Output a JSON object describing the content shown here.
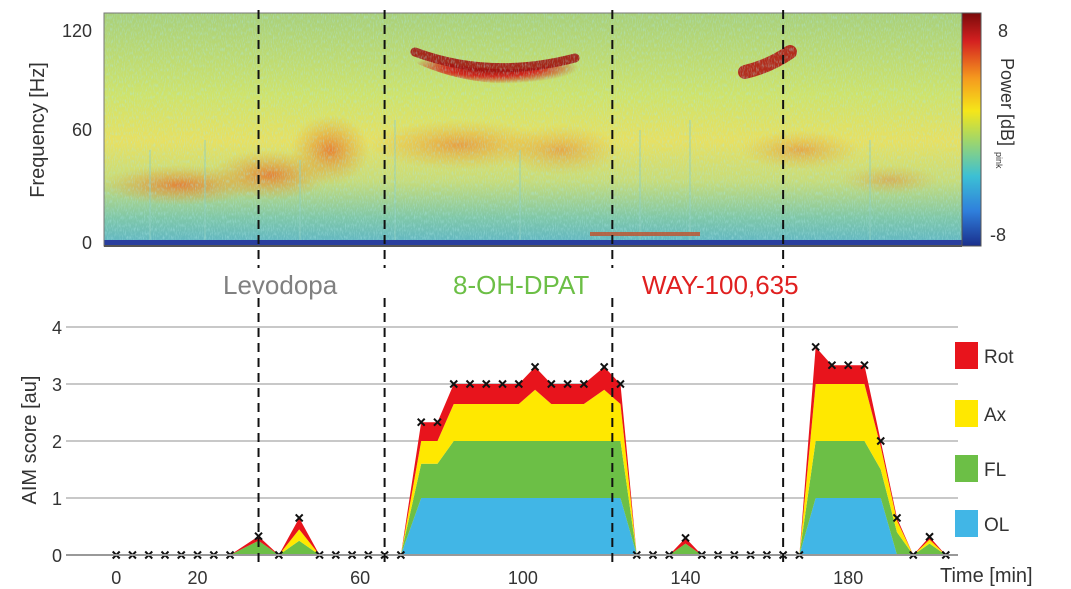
{
  "spectrogram": {
    "ylabel": "Frequency [Hz]",
    "yticks": [
      "0",
      "60",
      "120"
    ],
    "colorbar_label": "Power [dB]",
    "colorbar_subscript": "pink",
    "colorbar_ticks": [
      "8",
      "-8"
    ]
  },
  "drug_labels": [
    {
      "text": "Levodopa",
      "color": "#808080"
    },
    {
      "text": "8-OH-DPAT",
      "color": "#6cbf46"
    },
    {
      "text": "WAY-100,635",
      "color": "#e02020"
    }
  ],
  "chart_data": {
    "type": "area",
    "ylabel": "AIM score [au]",
    "xlabel": "Time [min]",
    "xlim": [
      -3,
      207
    ],
    "ylim": [
      0,
      4
    ],
    "xticks": [
      0,
      20,
      60,
      100,
      140,
      180
    ],
    "xtick_labels": [
      "0",
      "20",
      "60",
      "100",
      "140",
      "180"
    ],
    "yticks": [
      0,
      1,
      2,
      3,
      4
    ],
    "ytick_labels": [
      "0",
      "1",
      "2",
      "3",
      "4"
    ],
    "grid": true,
    "legend_position": "right",
    "event_times": [
      35,
      66,
      122,
      164
    ],
    "x": [
      0,
      4,
      8,
      12,
      16,
      20,
      24,
      28,
      35,
      40,
      45,
      50,
      54,
      58,
      62,
      66,
      70,
      75,
      79,
      83,
      87,
      91,
      95,
      99,
      103,
      107,
      111,
      115,
      120,
      124,
      128,
      132,
      136,
      140,
      144,
      148,
      152,
      156,
      160,
      164,
      168,
      172,
      176,
      180,
      184,
      188,
      192,
      196,
      200,
      204
    ],
    "series": [
      {
        "name": "OL",
        "color": "#41b6e6",
        "values": [
          0,
          0,
          0,
          0,
          0,
          0,
          0,
          0,
          0,
          0,
          0,
          0,
          0,
          0,
          0,
          0,
          0,
          1,
          1,
          1,
          1,
          1,
          1,
          1,
          1,
          1,
          1,
          1,
          1,
          1,
          0,
          0,
          0,
          0,
          0,
          0,
          0,
          0,
          0,
          0,
          0,
          1,
          1,
          1,
          1,
          1,
          0,
          0,
          0,
          0
        ]
      },
      {
        "name": "FL",
        "color": "#6cbf46",
        "values": [
          0,
          0,
          0,
          0,
          0,
          0,
          0,
          0,
          0.25,
          0,
          0.25,
          0,
          0,
          0,
          0,
          0,
          0,
          0.6,
          0.6,
          1,
          1,
          1,
          1,
          1,
          1,
          1,
          1,
          1,
          1,
          1,
          0,
          0,
          0,
          0.2,
          0,
          0,
          0,
          0,
          0,
          0,
          0,
          1,
          1,
          1,
          1,
          0.5,
          0.4,
          0,
          0.2,
          0
        ]
      },
      {
        "name": "Ax",
        "color": "#ffe800",
        "values": [
          0,
          0,
          0,
          0,
          0,
          0,
          0,
          0,
          0,
          0,
          0.2,
          0,
          0,
          0,
          0,
          0,
          0,
          0.4,
          0.4,
          0.65,
          0.65,
          0.65,
          0.65,
          0.65,
          0.9,
          0.65,
          0.65,
          0.65,
          0.9,
          0.65,
          0,
          0,
          0,
          0,
          0,
          0,
          0,
          0,
          0,
          0,
          0,
          1,
          1,
          1,
          1,
          0.4,
          0.2,
          0,
          0.07,
          0
        ]
      },
      {
        "name": "Rot",
        "color": "#e8141c",
        "values": [
          0,
          0,
          0,
          0,
          0,
          0,
          0,
          0,
          0.08,
          0,
          0.2,
          0,
          0,
          0,
          0,
          0,
          0,
          0.33,
          0.33,
          0.35,
          0.35,
          0.35,
          0.35,
          0.35,
          0.4,
          0.35,
          0.35,
          0.35,
          0.4,
          0.35,
          0,
          0,
          0,
          0.1,
          0,
          0,
          0,
          0,
          0,
          0,
          0,
          0.65,
          0.33,
          0.33,
          0.33,
          0.1,
          0.05,
          0,
          0.05,
          0
        ]
      }
    ],
    "totals": [
      0,
      0,
      0,
      0,
      0,
      0,
      0,
      0,
      0.33,
      0,
      0.65,
      0,
      0,
      0,
      0,
      0,
      0,
      2.33,
      2.33,
      3,
      3,
      3,
      3,
      3,
      3.3,
      3,
      3,
      3,
      3.3,
      3,
      0,
      0,
      0,
      0.3,
      0,
      0,
      0,
      0,
      0,
      0,
      0,
      3.65,
      3.33,
      3.33,
      3.33,
      2,
      0.65,
      0,
      0.32,
      0
    ],
    "legend_order": [
      "Rot",
      "Ax",
      "FL",
      "OL"
    ]
  }
}
